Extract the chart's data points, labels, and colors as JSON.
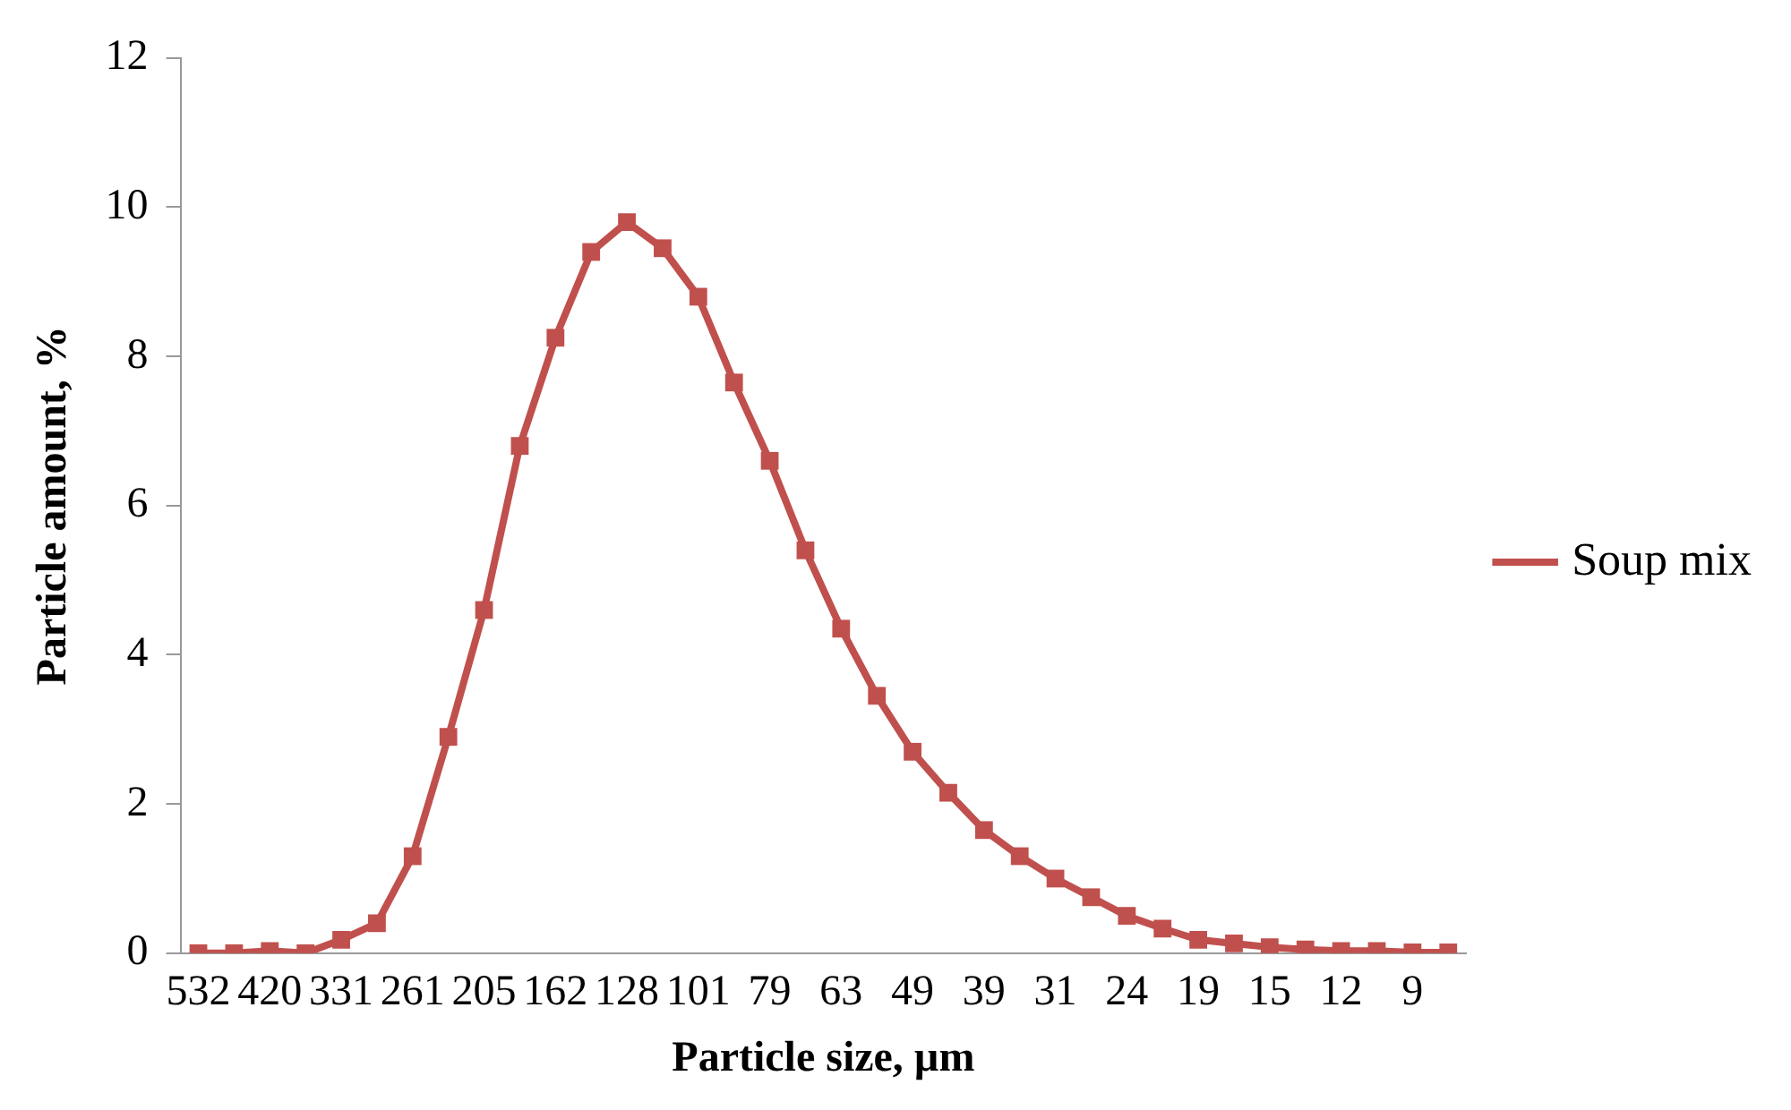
{
  "chart_data": {
    "type": "line",
    "xlabel": "Particle size, µm",
    "ylabel": "Particle amount, %",
    "categories": [
      "532",
      null,
      "420",
      null,
      "331",
      null,
      "261",
      null,
      "205",
      null,
      "162",
      null,
      "128",
      null,
      "101",
      null,
      "79",
      null,
      "63",
      null,
      "49",
      null,
      "39",
      null,
      "31",
      null,
      "24",
      null,
      "19",
      null,
      "15",
      null,
      "12",
      null,
      "9",
      null
    ],
    "series": [
      {
        "name": "Soup mix",
        "color": "#c0504d",
        "values": [
          0,
          0,
          0.03,
          0,
          0.18,
          0.4,
          1.3,
          2.9,
          4.6,
          6.8,
          8.25,
          9.4,
          9.8,
          9.45,
          8.8,
          7.65,
          6.6,
          5.4,
          4.35,
          3.45,
          2.7,
          2.15,
          1.65,
          1.3,
          1.0,
          0.75,
          0.5,
          0.33,
          0.18,
          0.13,
          0.08,
          0.05,
          0.03,
          0.03,
          0.01,
          0.01
        ]
      }
    ],
    "ylim": [
      0,
      12
    ],
    "yticks": [
      0,
      2,
      4,
      6,
      8,
      10,
      12
    ],
    "grid": false,
    "legend": "right",
    "marker": "square",
    "line_style": "solid"
  }
}
